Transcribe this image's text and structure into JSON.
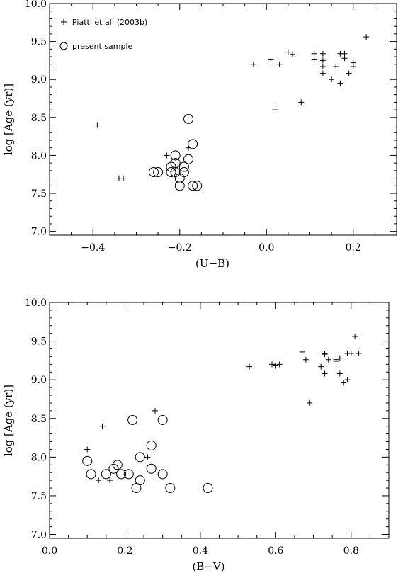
{
  "chart_data": [
    {
      "type": "scatter",
      "xlabel": "(U−B)",
      "ylabel": "log [Age (yr)]",
      "xlim": [
        -0.5,
        0.3
      ],
      "ylim": [
        6.95,
        10.0
      ],
      "xticks": [
        -0.4,
        -0.2,
        0.0,
        0.2
      ],
      "xtick_labels": [
        "−0.4",
        "−0.2",
        "0.0",
        "0.2"
      ],
      "yticks": [
        7.0,
        7.5,
        8.0,
        8.5,
        9.0,
        9.5,
        10.0
      ],
      "ytick_labels": [
        "7.0",
        "7.5",
        "8.0",
        "8.5",
        "9.0",
        "9.5",
        "10.0"
      ],
      "legend_position": "top-left",
      "series": [
        {
          "name": "Piatti et al. (2003b)",
          "marker": "plus",
          "points": [
            [
              -0.39,
              8.4
            ],
            [
              -0.34,
              7.7
            ],
            [
              -0.33,
              7.7
            ],
            [
              -0.23,
              8.0
            ],
            [
              -0.18,
              8.1
            ],
            [
              -0.03,
              9.2
            ],
            [
              0.01,
              9.26
            ],
            [
              0.02,
              8.6
            ],
            [
              0.03,
              9.2
            ],
            [
              0.05,
              9.36
            ],
            [
              0.06,
              9.33
            ],
            [
              0.08,
              8.7
            ],
            [
              0.11,
              9.34
            ],
            [
              0.11,
              9.26
            ],
            [
              0.13,
              9.34
            ],
            [
              0.13,
              9.25
            ],
            [
              0.13,
              9.17
            ],
            [
              0.13,
              9.08
            ],
            [
              0.15,
              9.0
            ],
            [
              0.16,
              9.17
            ],
            [
              0.17,
              8.95
            ],
            [
              0.17,
              9.34
            ],
            [
              0.18,
              9.34
            ],
            [
              0.18,
              9.28
            ],
            [
              0.19,
              9.08
            ],
            [
              0.2,
              9.22
            ],
            [
              0.2,
              9.17
            ],
            [
              0.23,
              9.56
            ]
          ]
        },
        {
          "name": "present sample",
          "marker": "circle",
          "points": [
            [
              -0.26,
              7.78
            ],
            [
              -0.25,
              7.78
            ],
            [
              -0.22,
              7.85
            ],
            [
              -0.22,
              7.78
            ],
            [
              -0.21,
              8.0
            ],
            [
              -0.21,
              7.9
            ],
            [
              -0.21,
              7.78
            ],
            [
              -0.2,
              7.7
            ],
            [
              -0.2,
              7.6
            ],
            [
              -0.19,
              7.85
            ],
            [
              -0.19,
              7.78
            ],
            [
              -0.18,
              7.95
            ],
            [
              -0.18,
              8.48
            ],
            [
              -0.17,
              8.15
            ],
            [
              -0.17,
              7.6
            ],
            [
              -0.16,
              7.6
            ]
          ]
        }
      ]
    },
    {
      "type": "scatter",
      "xlabel": "(B−V)",
      "ylabel": "log [Age (yr)]",
      "xlim": [
        0.0,
        0.9
      ],
      "ylim": [
        6.95,
        10.0
      ],
      "xticks": [
        0.0,
        0.2,
        0.4,
        0.6,
        0.8
      ],
      "xtick_labels": [
        "0.0",
        "0.2",
        "0.4",
        "0.6",
        "0.8"
      ],
      "yticks": [
        7.0,
        7.5,
        8.0,
        8.5,
        9.0,
        9.5,
        10.0
      ],
      "ytick_labels": [
        "7.0",
        "7.5",
        "8.0",
        "8.5",
        "9.0",
        "9.5",
        "10.0"
      ],
      "series": [
        {
          "name": "Piatti et al. (2003b)",
          "marker": "plus",
          "points": [
            [
              0.1,
              8.1
            ],
            [
              0.13,
              7.7
            ],
            [
              0.14,
              8.4
            ],
            [
              0.16,
              7.7
            ],
            [
              0.26,
              8.0
            ],
            [
              0.28,
              8.6
            ],
            [
              0.53,
              9.17
            ],
            [
              0.59,
              9.2
            ],
            [
              0.6,
              9.18
            ],
            [
              0.61,
              9.2
            ],
            [
              0.67,
              9.36
            ],
            [
              0.68,
              9.26
            ],
            [
              0.69,
              8.7
            ],
            [
              0.72,
              9.17
            ],
            [
              0.73,
              9.34
            ],
            [
              0.73,
              9.33
            ],
            [
              0.73,
              9.08
            ],
            [
              0.74,
              9.26
            ],
            [
              0.76,
              9.24
            ],
            [
              0.76,
              9.26
            ],
            [
              0.77,
              9.28
            ],
            [
              0.77,
              9.08
            ],
            [
              0.78,
              8.96
            ],
            [
              0.79,
              9.0
            ],
            [
              0.79,
              9.34
            ],
            [
              0.8,
              9.34
            ],
            [
              0.81,
              9.56
            ],
            [
              0.82,
              9.34
            ]
          ]
        },
        {
          "name": "present sample",
          "marker": "circle",
          "points": [
            [
              0.1,
              7.95
            ],
            [
              0.11,
              7.78
            ],
            [
              0.15,
              7.78
            ],
            [
              0.17,
              7.85
            ],
            [
              0.18,
              7.9
            ],
            [
              0.19,
              7.78
            ],
            [
              0.21,
              7.78
            ],
            [
              0.22,
              8.48
            ],
            [
              0.23,
              7.6
            ],
            [
              0.24,
              8.0
            ],
            [
              0.24,
              7.7
            ],
            [
              0.27,
              8.15
            ],
            [
              0.27,
              7.85
            ],
            [
              0.3,
              8.48
            ],
            [
              0.3,
              7.78
            ],
            [
              0.32,
              7.6
            ],
            [
              0.42,
              7.6
            ]
          ]
        }
      ]
    }
  ]
}
